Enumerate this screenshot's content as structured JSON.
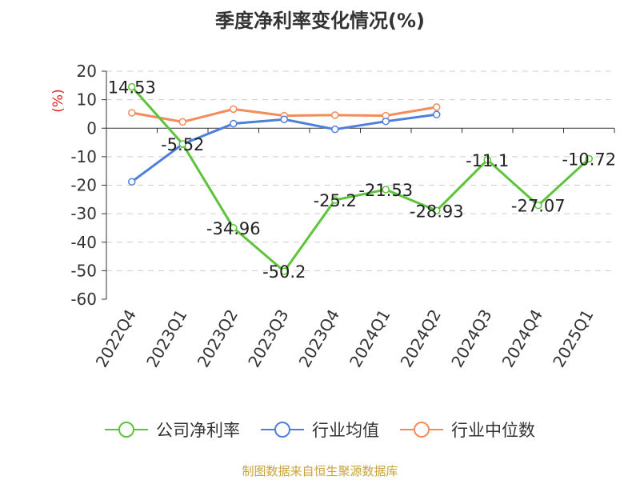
{
  "title": "季度净利率变化情况(%)",
  "source": "制图数据来自恒生聚源数据库",
  "colors": {
    "company": "#5cc43a",
    "industry_avg": "#4f7fdc",
    "industry_median": "#f28c5a",
    "grid": "#cccccc",
    "axis": "#333333",
    "ylabel": "#e02020"
  },
  "chart_data": {
    "type": "line",
    "title": "季度净利率变化情况(%)",
    "ylabel": "(%)",
    "ylim": [
      -60,
      20
    ],
    "yticks": [
      20,
      10,
      0,
      -10,
      -20,
      -30,
      -40,
      -50,
      -60
    ],
    "grid": true,
    "legend_position": "bottom",
    "categories": [
      "2022Q4",
      "2023Q1",
      "2023Q2",
      "2023Q3",
      "2023Q4",
      "2024Q1",
      "2024Q2",
      "2024Q3",
      "2024Q4",
      "2025Q1"
    ],
    "series": [
      {
        "name": "公司净利率",
        "color_key": "company",
        "show_labels": true,
        "values": [
          14.53,
          -5.52,
          -34.96,
          -50.2,
          -25.2,
          -21.53,
          -28.93,
          -11.1,
          -27.07,
          -10.72
        ]
      },
      {
        "name": "行业均值",
        "color_key": "industry_avg",
        "show_labels": false,
        "values": [
          -18.8,
          -5.6,
          1.6,
          3.1,
          -0.4,
          2.4,
          4.8,
          null,
          null,
          null
        ]
      },
      {
        "name": "行业中位数",
        "color_key": "industry_median",
        "show_labels": false,
        "values": [
          5.4,
          2.2,
          6.7,
          4.4,
          4.6,
          4.4,
          7.4,
          null,
          null,
          null
        ]
      }
    ]
  }
}
